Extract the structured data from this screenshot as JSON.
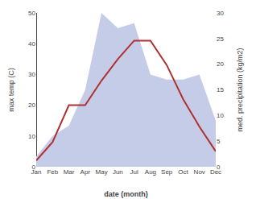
{
  "chart_data": {
    "type": "line",
    "categories": [
      "Jan",
      "Feb",
      "Mar",
      "Apr",
      "May",
      "Jun",
      "Jul",
      "Aug",
      "Sep",
      "Oct",
      "Nov",
      "Dec"
    ],
    "series": [
      {
        "type": "area",
        "color": "#c5cce8",
        "axis": "y2",
        "values": [
          2,
          6,
          8,
          15,
          30,
          27,
          28,
          18,
          17,
          17,
          18,
          9
        ]
      },
      {
        "type": "line",
        "color": "#b03030",
        "values": [
          2,
          8,
          20,
          20,
          28,
          35,
          41,
          41,
          33,
          22,
          13,
          5
        ]
      }
    ],
    "xlabel": "date (month)",
    "ylabel": "max temp (C)",
    "y2label": "med. precipitation (kg/m2)",
    "ylim": [
      0,
      50
    ],
    "yticks": [
      0,
      10,
      20,
      30,
      40,
      50
    ],
    "y2lim": [
      0,
      30
    ],
    "y2ticks": [
      0,
      5,
      10,
      15,
      20,
      25,
      30
    ],
    "grid": false
  }
}
